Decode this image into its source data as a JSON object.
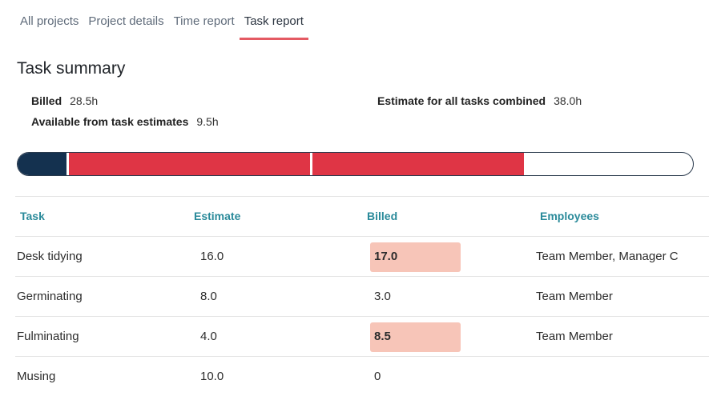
{
  "tabs": [
    {
      "label": "All projects",
      "active": false
    },
    {
      "label": "Project details",
      "active": false
    },
    {
      "label": "Time report",
      "active": false
    },
    {
      "label": "Task report",
      "active": true
    }
  ],
  "summary": {
    "title": "Task summary",
    "billed_label": "Billed",
    "billed_value": "28.5h",
    "available_label": "Available from task estimates",
    "available_value": "9.5h",
    "estimate_label": "Estimate for all tasks combined",
    "estimate_value": "38.0h"
  },
  "progress": {
    "total_estimate": 38.0,
    "billed": 28.5,
    "segments": [
      {
        "task": "Desk tidying",
        "value": 2.8,
        "color": "#14314f"
      },
      {
        "task": "Billed",
        "value": 25.7,
        "color": "#df3545"
      }
    ],
    "dividers_at": [
      2.8,
      16.5
    ],
    "colors": {
      "border": "#2a3a4d",
      "empty": "#ffffff"
    }
  },
  "table": {
    "headers": [
      "Task",
      "Estimate",
      "Billed",
      "Employees"
    ],
    "rows": [
      {
        "task": "Desk tidying",
        "estimate": "16.0",
        "billed": "17.0",
        "employees": "Team Member, Manager C",
        "over": true
      },
      {
        "task": "Germinating",
        "estimate": "8.0",
        "billed": "3.0",
        "employees": "Team Member",
        "over": false
      },
      {
        "task": "Fulminating",
        "estimate": "4.0",
        "billed": "8.5",
        "employees": "Team Member",
        "over": true
      },
      {
        "task": "Musing",
        "estimate": "10.0",
        "billed": "0",
        "employees": "",
        "over": false
      }
    ],
    "highlight_color": "#f7c5b8",
    "header_color": "#2a8a9a"
  }
}
